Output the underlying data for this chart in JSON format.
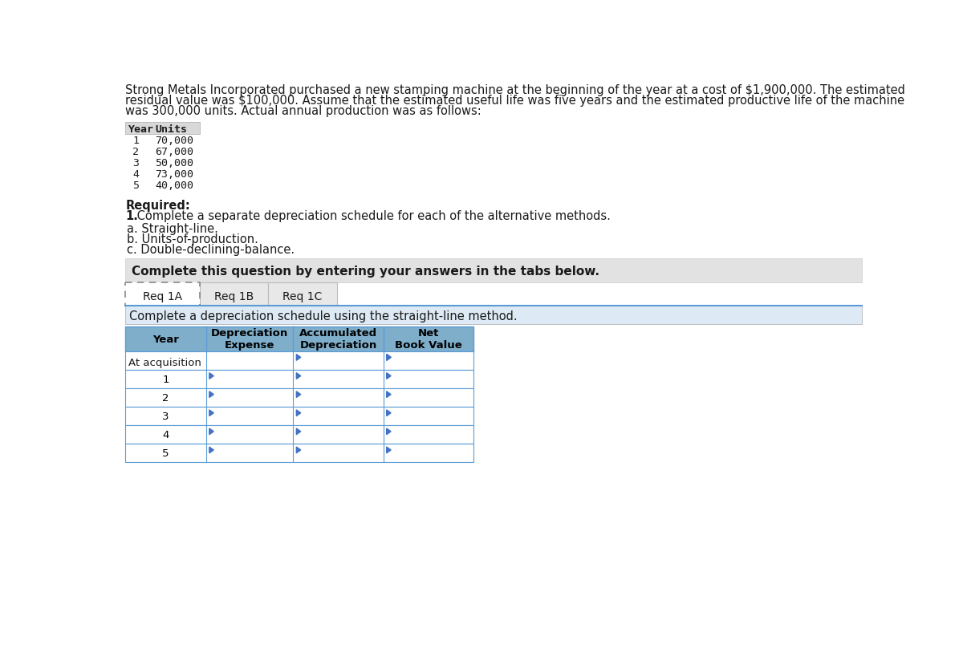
{
  "title_lines": [
    "Strong Metals Incorporated purchased a new stamping machine at the beginning of the year at a cost of $1,900,000. The estimated",
    "residual value was $100,000. Assume that the estimated useful life was five years and the estimated productive life of the machine",
    "was 300,000 units. Actual annual production was as follows:"
  ],
  "units_table_header": [
    "Year",
    "Units"
  ],
  "units_table_rows": [
    [
      "1",
      "70,000"
    ],
    [
      "2",
      "67,000"
    ],
    [
      "3",
      "50,000"
    ],
    [
      "4",
      "73,000"
    ],
    [
      "5",
      "40,000"
    ]
  ],
  "required_bold": "Required:",
  "required_1_bold": "1.",
  "required_1_rest": " Complete a separate depreciation schedule for each of the alternative methods.",
  "methods": [
    "a. Straight-line.",
    "b. Units-of-production.",
    "c. Double-declining-balance."
  ],
  "complete_text": "Complete this question by entering your answers in the tabs below.",
  "tabs": [
    "Req 1A",
    "Req 1B",
    "Req 1C"
  ],
  "active_tab": "Req 1A",
  "tab_instruction": "Complete a depreciation schedule using the straight-line method.",
  "depreciation_table_headers": [
    "Year",
    "Depreciation\nExpense",
    "Accumulated\nDepreciation",
    "Net\nBook Value"
  ],
  "depreciation_table_rows": [
    "At acquisition",
    "1",
    "2",
    "3",
    "4",
    "5"
  ],
  "bg_color": "#ffffff",
  "header_bg": "#7faecb",
  "row_bg_white": "#ffffff",
  "table_border": "#5b9bd5",
  "gray_banner_bg": "#e2e2e2",
  "blue_banner_bg": "#ddeaf5",
  "tab_bg": "#e8e8e8",
  "input_marker_color": "#4472c4",
  "units_header_bg": "#d9d9d9",
  "text_color": "#1a1a1a"
}
